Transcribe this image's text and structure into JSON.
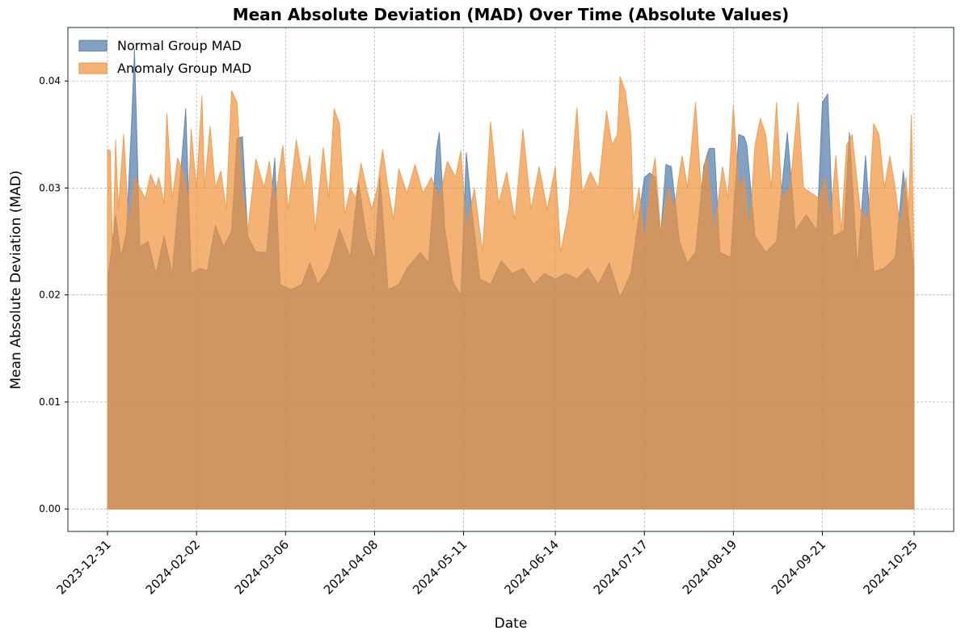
{
  "chart_data": {
    "type": "area",
    "title": "Mean Absolute Deviation (MAD) Over Time (Absolute Values)",
    "xlabel": "Date",
    "ylabel": "Mean Absolute Deviation (MAD)",
    "x_range": [
      "2023-12-31",
      "2024-10-25"
    ],
    "ylim": [
      -0.0021,
      0.045
    ],
    "x_ticks": [
      "2023-12-31",
      "2024-02-02",
      "2024-03-06",
      "2024-04-08",
      "2024-05-11",
      "2024-06-14",
      "2024-07-17",
      "2024-08-19",
      "2024-09-21",
      "2024-10-25"
    ],
    "y_ticks": [
      "0.00",
      "0.01",
      "0.02",
      "0.03",
      "0.04"
    ],
    "y_tick_values": [
      0,
      0.01,
      0.02,
      0.03,
      0.04
    ],
    "grid": true,
    "legend_position": "top-left",
    "colors": {
      "normal": "#4f79a8",
      "anomaly": "#f0923a",
      "overlap": "#cf9659",
      "axes_frame": "#0c3146"
    },
    "series": [
      {
        "name": "Normal Group MAD",
        "points": [
          [
            "2023-12-31",
            0.0212
          ],
          [
            "2024-01-03",
            0.0275
          ],
          [
            "2024-01-05",
            0.0235
          ],
          [
            "2024-01-07",
            0.0258
          ],
          [
            "2024-01-09",
            0.0365
          ],
          [
            "2024-01-10",
            0.043
          ],
          [
            "2024-01-12",
            0.0245
          ],
          [
            "2024-01-15",
            0.025
          ],
          [
            "2024-01-18",
            0.022
          ],
          [
            "2024-01-21",
            0.0255
          ],
          [
            "2024-01-24",
            0.022
          ],
          [
            "2024-01-27",
            0.031
          ],
          [
            "2024-01-29",
            0.0374
          ],
          [
            "2024-01-31",
            0.022
          ],
          [
            "2024-02-03",
            0.0225
          ],
          [
            "2024-02-06",
            0.0223
          ],
          [
            "2024-02-09",
            0.0265
          ],
          [
            "2024-02-12",
            0.0245
          ],
          [
            "2024-02-15",
            0.026
          ],
          [
            "2024-02-17",
            0.0346
          ],
          [
            "2024-02-19",
            0.0348
          ],
          [
            "2024-02-21",
            0.0255
          ],
          [
            "2024-02-24",
            0.024
          ],
          [
            "2024-02-28",
            0.024
          ],
          [
            "2024-03-02",
            0.0328
          ],
          [
            "2024-03-04",
            0.021
          ],
          [
            "2024-03-08",
            0.0205
          ],
          [
            "2024-03-12",
            0.021
          ],
          [
            "2024-03-15",
            0.023
          ],
          [
            "2024-03-18",
            0.021
          ],
          [
            "2024-03-22",
            0.0225
          ],
          [
            "2024-03-26",
            0.0262
          ],
          [
            "2024-03-30",
            0.0235
          ],
          [
            "2024-04-02",
            0.0306
          ],
          [
            "2024-04-05",
            0.0255
          ],
          [
            "2024-04-08",
            0.0233
          ],
          [
            "2024-04-10",
            0.031
          ],
          [
            "2024-04-13",
            0.0205
          ],
          [
            "2024-04-17",
            0.021
          ],
          [
            "2024-04-20",
            0.0225
          ],
          [
            "2024-04-25",
            0.024
          ],
          [
            "2024-04-28",
            0.023
          ],
          [
            "2024-05-01",
            0.0336
          ],
          [
            "2024-05-02",
            0.0352
          ],
          [
            "2024-05-04",
            0.0263
          ],
          [
            "2024-05-07",
            0.0212
          ],
          [
            "2024-05-10",
            0.02
          ],
          [
            "2024-05-12",
            0.0333
          ],
          [
            "2024-05-14",
            0.028
          ],
          [
            "2024-05-17",
            0.0215
          ],
          [
            "2024-05-21",
            0.021
          ],
          [
            "2024-05-25",
            0.0232
          ],
          [
            "2024-05-29",
            0.022
          ],
          [
            "2024-06-02",
            0.0225
          ],
          [
            "2024-06-06",
            0.021
          ],
          [
            "2024-06-10",
            0.022
          ],
          [
            "2024-06-14",
            0.0215
          ],
          [
            "2024-06-18",
            0.022
          ],
          [
            "2024-06-22",
            0.0215
          ],
          [
            "2024-06-26",
            0.0225
          ],
          [
            "2024-06-30",
            0.021
          ],
          [
            "2024-07-04",
            0.023
          ],
          [
            "2024-07-08",
            0.0198
          ],
          [
            "2024-07-12",
            0.022
          ],
          [
            "2024-07-17",
            0.031
          ],
          [
            "2024-07-19",
            0.0314
          ],
          [
            "2024-07-21",
            0.031
          ],
          [
            "2024-07-23",
            0.0255
          ],
          [
            "2024-07-25",
            0.0322
          ],
          [
            "2024-07-27",
            0.032
          ],
          [
            "2024-07-30",
            0.025
          ],
          [
            "2024-08-02",
            0.023
          ],
          [
            "2024-08-05",
            0.024
          ],
          [
            "2024-08-08",
            0.032
          ],
          [
            "2024-08-10",
            0.0337
          ],
          [
            "2024-08-12",
            0.0337
          ],
          [
            "2024-08-14",
            0.024
          ],
          [
            "2024-08-18",
            0.0235
          ],
          [
            "2024-08-21",
            0.035
          ],
          [
            "2024-08-23",
            0.0348
          ],
          [
            "2024-08-24",
            0.034
          ],
          [
            "2024-08-27",
            0.0255
          ],
          [
            "2024-08-31",
            0.024
          ],
          [
            "2024-09-04",
            0.025
          ],
          [
            "2024-09-08",
            0.0352
          ],
          [
            "2024-09-11",
            0.026
          ],
          [
            "2024-09-15",
            0.0275
          ],
          [
            "2024-09-19",
            0.026
          ],
          [
            "2024-09-21",
            0.038
          ],
          [
            "2024-09-23",
            0.0388
          ],
          [
            "2024-09-25",
            0.0255
          ],
          [
            "2024-09-29",
            0.026
          ],
          [
            "2024-10-01",
            0.0352
          ],
          [
            "2024-10-04",
            0.0225
          ],
          [
            "2024-10-07",
            0.033
          ],
          [
            "2024-10-10",
            0.0222
          ],
          [
            "2024-10-14",
            0.0225
          ],
          [
            "2024-10-18",
            0.0235
          ],
          [
            "2024-10-21",
            0.0316
          ],
          [
            "2024-10-23",
            0.027
          ],
          [
            "2024-10-25",
            0.022
          ]
        ]
      },
      {
        "name": "Anomaly Group MAD",
        "points": [
          [
            "2023-12-31",
            0.0336
          ],
          [
            "2024-01-01",
            0.0335
          ],
          [
            "2024-01-02",
            0.023
          ],
          [
            "2024-01-03",
            0.0345
          ],
          [
            "2024-01-04",
            0.028
          ],
          [
            "2024-01-06",
            0.035
          ],
          [
            "2024-01-08",
            0.026
          ],
          [
            "2024-01-10",
            0.031
          ],
          [
            "2024-01-12",
            0.03
          ],
          [
            "2024-01-14",
            0.029
          ],
          [
            "2024-01-16",
            0.0313
          ],
          [
            "2024-01-18",
            0.03
          ],
          [
            "2024-01-19",
            0.031
          ],
          [
            "2024-01-21",
            0.0285
          ],
          [
            "2024-01-22",
            0.037
          ],
          [
            "2024-01-24",
            0.029
          ],
          [
            "2024-01-26",
            0.0328
          ],
          [
            "2024-01-28",
            0.0315
          ],
          [
            "2024-01-30",
            0.0287
          ],
          [
            "2024-01-31",
            0.0355
          ],
          [
            "2024-02-02",
            0.03
          ],
          [
            "2024-02-04",
            0.0386
          ],
          [
            "2024-02-05",
            0.03
          ],
          [
            "2024-02-07",
            0.0358
          ],
          [
            "2024-02-09",
            0.03
          ],
          [
            "2024-02-11",
            0.0316
          ],
          [
            "2024-02-13",
            0.028
          ],
          [
            "2024-02-15",
            0.0391
          ],
          [
            "2024-02-17",
            0.038
          ],
          [
            "2024-02-19",
            0.03
          ],
          [
            "2024-02-21",
            0.026
          ],
          [
            "2024-02-24",
            0.0327
          ],
          [
            "2024-02-27",
            0.03
          ],
          [
            "2024-02-29",
            0.0325
          ],
          [
            "2024-03-02",
            0.0285
          ],
          [
            "2024-03-05",
            0.034
          ],
          [
            "2024-03-07",
            0.028
          ],
          [
            "2024-03-10",
            0.0345
          ],
          [
            "2024-03-13",
            0.03
          ],
          [
            "2024-03-15",
            0.033
          ],
          [
            "2024-03-17",
            0.026
          ],
          [
            "2024-03-20",
            0.0338
          ],
          [
            "2024-03-22",
            0.029
          ],
          [
            "2024-03-24",
            0.0374
          ],
          [
            "2024-03-26",
            0.036
          ],
          [
            "2024-03-28",
            0.0275
          ],
          [
            "2024-03-30",
            0.03
          ],
          [
            "2024-04-01",
            0.029
          ],
          [
            "2024-04-03",
            0.0323
          ],
          [
            "2024-04-05",
            0.03
          ],
          [
            "2024-04-07",
            0.028
          ],
          [
            "2024-04-09",
            0.03
          ],
          [
            "2024-04-11",
            0.0336
          ],
          [
            "2024-04-13",
            0.03
          ],
          [
            "2024-04-15",
            0.027
          ],
          [
            "2024-04-17",
            0.0318
          ],
          [
            "2024-04-20",
            0.0295
          ],
          [
            "2024-04-23",
            0.0322
          ],
          [
            "2024-04-26",
            0.0295
          ],
          [
            "2024-04-29",
            0.031
          ],
          [
            "2024-05-02",
            0.029
          ],
          [
            "2024-05-05",
            0.0325
          ],
          [
            "2024-05-08",
            0.031
          ],
          [
            "2024-05-10",
            0.0335
          ],
          [
            "2024-05-12",
            0.026
          ],
          [
            "2024-05-15",
            0.03
          ],
          [
            "2024-05-18",
            0.024
          ],
          [
            "2024-05-21",
            0.0362
          ],
          [
            "2024-05-24",
            0.0285
          ],
          [
            "2024-05-27",
            0.0315
          ],
          [
            "2024-05-30",
            0.027
          ],
          [
            "2024-06-02",
            0.0355
          ],
          [
            "2024-06-05",
            0.028
          ],
          [
            "2024-06-08",
            0.032
          ],
          [
            "2024-06-11",
            0.028
          ],
          [
            "2024-06-14",
            0.032
          ],
          [
            "2024-06-16",
            0.024
          ],
          [
            "2024-06-19",
            0.028
          ],
          [
            "2024-06-22",
            0.0375
          ],
          [
            "2024-06-24",
            0.0295
          ],
          [
            "2024-06-27",
            0.0315
          ],
          [
            "2024-06-30",
            0.03
          ],
          [
            "2024-07-03",
            0.0372
          ],
          [
            "2024-07-05",
            0.034
          ],
          [
            "2024-07-07",
            0.035
          ],
          [
            "2024-07-08",
            0.0404
          ],
          [
            "2024-07-10",
            0.039
          ],
          [
            "2024-07-12",
            0.035
          ],
          [
            "2024-07-13",
            0.027
          ],
          [
            "2024-07-15",
            0.03
          ],
          [
            "2024-07-17",
            0.025
          ],
          [
            "2024-07-19",
            0.03
          ],
          [
            "2024-07-21",
            0.0328
          ],
          [
            "2024-07-23",
            0.026
          ],
          [
            "2024-07-26",
            0.03
          ],
          [
            "2024-07-28",
            0.028
          ],
          [
            "2024-07-31",
            0.033
          ],
          [
            "2024-08-02",
            0.03
          ],
          [
            "2024-08-05",
            0.038
          ],
          [
            "2024-08-07",
            0.03
          ],
          [
            "2024-08-09",
            0.033
          ],
          [
            "2024-08-12",
            0.026
          ],
          [
            "2024-08-15",
            0.032
          ],
          [
            "2024-08-17",
            0.029
          ],
          [
            "2024-08-19",
            0.0377
          ],
          [
            "2024-08-21",
            0.03
          ],
          [
            "2024-08-23",
            0.031
          ],
          [
            "2024-08-25",
            0.026
          ],
          [
            "2024-08-27",
            0.034
          ],
          [
            "2024-08-29",
            0.0365
          ],
          [
            "2024-08-31",
            0.035
          ],
          [
            "2024-09-02",
            0.03
          ],
          [
            "2024-09-04",
            0.038
          ],
          [
            "2024-09-06",
            0.029
          ],
          [
            "2024-09-09",
            0.03
          ],
          [
            "2024-09-12",
            0.038
          ],
          [
            "2024-09-14",
            0.03
          ],
          [
            "2024-09-17",
            0.0295
          ],
          [
            "2024-09-20",
            0.029
          ],
          [
            "2024-09-22",
            0.031
          ],
          [
            "2024-09-24",
            0.027
          ],
          [
            "2024-09-26",
            0.033
          ],
          [
            "2024-09-28",
            0.026
          ],
          [
            "2024-09-30",
            0.034
          ],
          [
            "2024-10-02",
            0.035
          ],
          [
            "2024-10-05",
            0.028
          ],
          [
            "2024-10-08",
            0.027
          ],
          [
            "2024-10-10",
            0.036
          ],
          [
            "2024-10-12",
            0.035
          ],
          [
            "2024-10-14",
            0.03
          ],
          [
            "2024-10-16",
            0.033
          ],
          [
            "2024-10-18",
            0.03
          ],
          [
            "2024-10-20",
            0.026
          ],
          [
            "2024-10-22",
            0.031
          ],
          [
            "2024-10-23",
            0.028
          ],
          [
            "2024-10-24",
            0.0368
          ],
          [
            "2024-10-25",
            0.022
          ]
        ]
      }
    ]
  }
}
